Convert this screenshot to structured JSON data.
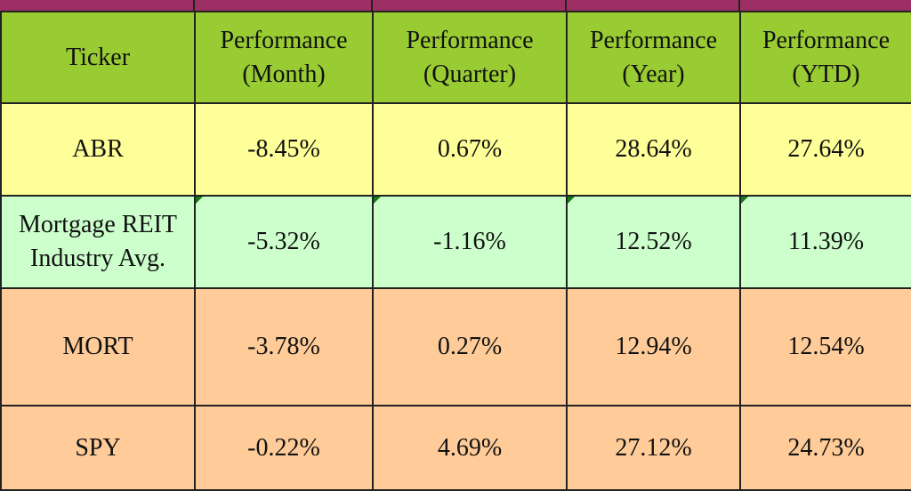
{
  "table": {
    "header": [
      "Ticker",
      "Performance (Month)",
      "Performance (Quarter)",
      "Performance (Year)",
      "Performance (YTD)"
    ],
    "rows": [
      [
        "ABR",
        "-8.45%",
        "0.67%",
        "28.64%",
        "27.64%"
      ],
      [
        "Mortgage REIT Industry Avg.",
        "-5.32%",
        "-1.16%",
        "12.52%",
        "11.39%"
      ],
      [
        "MORT",
        "-3.78%",
        "0.27%",
        "12.94%",
        "12.54%"
      ],
      [
        "SPY",
        "-0.22%",
        "4.69%",
        "27.12%",
        "24.73%"
      ]
    ]
  }
}
